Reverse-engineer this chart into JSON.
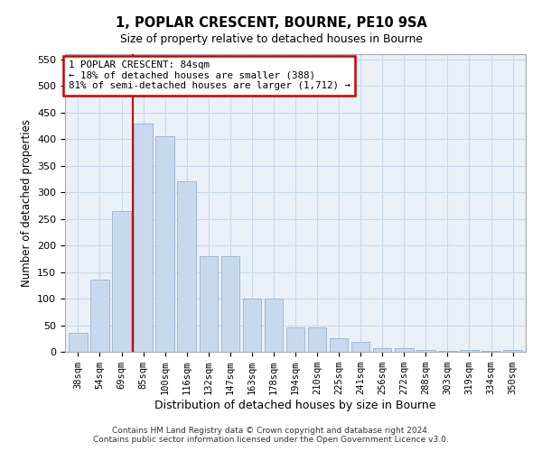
{
  "title1": "1, POPLAR CRESCENT, BOURNE, PE10 9SA",
  "title2": "Size of property relative to detached houses in Bourne",
  "xlabel": "Distribution of detached houses by size in Bourne",
  "ylabel": "Number of detached properties",
  "categories": [
    "38sqm",
    "54sqm",
    "69sqm",
    "85sqm",
    "100sqm",
    "116sqm",
    "132sqm",
    "147sqm",
    "163sqm",
    "178sqm",
    "194sqm",
    "210sqm",
    "225sqm",
    "241sqm",
    "256sqm",
    "272sqm",
    "288sqm",
    "303sqm",
    "319sqm",
    "334sqm",
    "350sqm"
  ],
  "values": [
    35,
    135,
    265,
    430,
    405,
    320,
    180,
    180,
    100,
    100,
    45,
    45,
    25,
    18,
    7,
    7,
    4,
    2,
    4,
    2,
    4
  ],
  "bar_color": "#c9d9ed",
  "bar_edge_color": "#a0b8d8",
  "grid_color": "#c8d8e8",
  "background_color": "#eaf0f8",
  "vline_color": "#cc0000",
  "annotation_text": "1 POPLAR CRESCENT: 84sqm\n← 18% of detached houses are smaller (388)\n81% of semi-detached houses are larger (1,712) →",
  "annotation_box_color": "#cc0000",
  "footer_line1": "Contains HM Land Registry data © Crown copyright and database right 2024.",
  "footer_line2": "Contains public sector information licensed under the Open Government Licence v3.0.",
  "ylim": [
    0,
    560
  ],
  "yticks": [
    0,
    50,
    100,
    150,
    200,
    250,
    300,
    350,
    400,
    450,
    500,
    550
  ]
}
